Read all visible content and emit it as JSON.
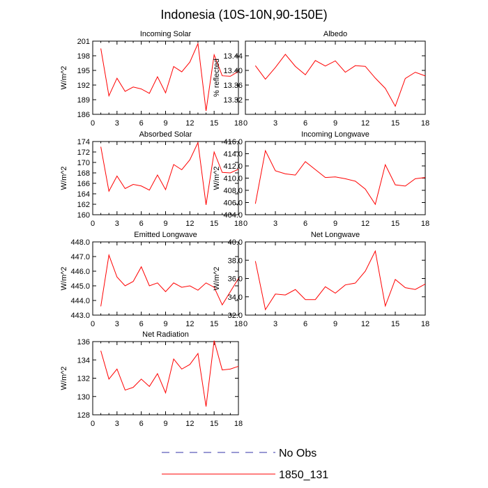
{
  "title": "Indonesia (10S-10N,90-150E)",
  "legend": [
    {
      "label": "No Obs",
      "color": "#3333aa",
      "dashed": true
    },
    {
      "label": "1850_131",
      "color": "#ff0000",
      "dashed": false
    }
  ],
  "chart_data": [
    {
      "type": "line",
      "title": "Incoming Solar",
      "xlabel": "",
      "ylabel": "W/m^2",
      "xlim": [
        0,
        18
      ],
      "xticks": [
        "0",
        "3",
        "6",
        "9",
        "12",
        "15",
        "18"
      ],
      "ylim": [
        186,
        201
      ],
      "yticks": [
        "186",
        "189",
        "192",
        "195",
        "198",
        "201"
      ],
      "series": [
        {
          "name": "1850_131",
          "color": "#ff0000",
          "x": [
            1,
            2,
            3,
            4,
            5,
            6,
            7,
            8,
            9,
            10,
            11,
            12,
            13,
            14,
            15,
            16,
            17,
            18
          ],
          "values": [
            199.5,
            189.8,
            193.4,
            190.7,
            191.6,
            191.2,
            190.3,
            193.7,
            190.4,
            195.8,
            194.7,
            196.7,
            200.5,
            186.7,
            198.2,
            193.9,
            193.8,
            194.8
          ]
        }
      ]
    },
    {
      "type": "line",
      "title": "Albedo",
      "xlabel": "",
      "ylabel": "% reflected",
      "xlim": [
        0,
        18
      ],
      "xticks": [
        "0",
        "3",
        "6",
        "9",
        "12",
        "15",
        "18"
      ],
      "ylim": [
        13.28,
        13.48
      ],
      "yticks": [
        "13.32",
        "13.36",
        "13.40",
        "13.44"
      ],
      "series": [
        {
          "name": "1850_131",
          "color": "#ff0000",
          "x": [
            1,
            2,
            3,
            4,
            5,
            6,
            7,
            8,
            9,
            10,
            11,
            12,
            13,
            14,
            15,
            16,
            17,
            18
          ],
          "values": [
            13.413,
            13.376,
            13.408,
            13.444,
            13.411,
            13.388,
            13.427,
            13.412,
            13.426,
            13.395,
            13.413,
            13.411,
            13.379,
            13.351,
            13.302,
            13.378,
            13.395,
            13.385
          ]
        }
      ]
    },
    {
      "type": "line",
      "title": "Absorbed Solar",
      "xlabel": "",
      "ylabel": "W/m^2",
      "xlim": [
        0,
        18
      ],
      "xticks": [
        "0",
        "3",
        "6",
        "9",
        "12",
        "15",
        "18"
      ],
      "ylim": [
        160,
        174
      ],
      "yticks": [
        "160",
        "162",
        "164",
        "166",
        "168",
        "170",
        "172",
        "174"
      ],
      "series": [
        {
          "name": "1850_131",
          "color": "#ff0000",
          "x": [
            1,
            2,
            3,
            4,
            5,
            6,
            7,
            8,
            9,
            10,
            11,
            12,
            13,
            14,
            15,
            16,
            17,
            18
          ],
          "values": [
            173.0,
            164.5,
            167.4,
            165.0,
            165.8,
            165.5,
            164.7,
            167.6,
            164.8,
            169.6,
            168.6,
            170.5,
            173.8,
            161.9,
            172.0,
            168.1,
            168.0,
            168.7
          ]
        }
      ]
    },
    {
      "type": "line",
      "title": "Incoming Longwave",
      "xlabel": "",
      "ylabel": "W/m^2",
      "xlim": [
        0,
        18
      ],
      "xticks": [
        "0",
        "3",
        "6",
        "9",
        "12",
        "15",
        "18"
      ],
      "ylim": [
        404,
        416
      ],
      "yticks": [
        "404.0",
        "406.0",
        "408.0",
        "410.0",
        "412.0",
        "414.0",
        "416.0"
      ],
      "series": [
        {
          "name": "1850_131",
          "color": "#ff0000",
          "x": [
            1,
            2,
            3,
            4,
            5,
            6,
            7,
            8,
            9,
            10,
            11,
            12,
            13,
            14,
            15,
            16,
            17,
            18
          ],
          "values": [
            405.8,
            414.5,
            411.2,
            410.7,
            410.5,
            412.7,
            411.4,
            410.1,
            410.2,
            409.9,
            409.5,
            408.2,
            405.7,
            412.2,
            408.9,
            408.7,
            409.9,
            410.1
          ]
        }
      ]
    },
    {
      "type": "line",
      "title": "Emitted Longwave",
      "xlabel": "",
      "ylabel": "W/m^2",
      "xlim": [
        0,
        18
      ],
      "xticks": [
        "0",
        "3",
        "6",
        "9",
        "12",
        "15",
        "18"
      ],
      "ylim": [
        443,
        448
      ],
      "yticks": [
        "443.0",
        "444.0",
        "445.0",
        "446.0",
        "447.0",
        "448.0"
      ],
      "series": [
        {
          "name": "1850_131",
          "color": "#ff0000",
          "x": [
            1,
            2,
            3,
            4,
            5,
            6,
            7,
            8,
            9,
            10,
            11,
            12,
            13,
            14,
            15,
            16,
            17,
            18
          ],
          "values": [
            443.6,
            447.1,
            445.6,
            445.0,
            445.3,
            446.3,
            445.0,
            445.2,
            444.6,
            445.2,
            444.9,
            445.0,
            444.7,
            445.2,
            444.9,
            443.7,
            444.6,
            445.5
          ]
        }
      ]
    },
    {
      "type": "line",
      "title": "Net Longwave",
      "xlabel": "",
      "ylabel": "W/m^2",
      "xlim": [
        0,
        18
      ],
      "xticks": [
        "0",
        "3",
        "6",
        "9",
        "12",
        "15",
        "18"
      ],
      "ylim": [
        32,
        40
      ],
      "yticks": [
        "32.0",
        "34.0",
        "36.0",
        "38.0",
        "40.0"
      ],
      "series": [
        {
          "name": "1850_131",
          "color": "#ff0000",
          "x": [
            1,
            2,
            3,
            4,
            5,
            6,
            7,
            8,
            9,
            10,
            11,
            12,
            13,
            14,
            15,
            16,
            17,
            18
          ],
          "values": [
            37.9,
            32.6,
            34.3,
            34.2,
            34.8,
            33.7,
            33.7,
            35.1,
            34.4,
            35.3,
            35.5,
            36.8,
            39.0,
            33.0,
            35.9,
            35.0,
            34.8,
            35.4
          ]
        }
      ]
    },
    {
      "type": "line",
      "title": "Net Radiation",
      "xlabel": "",
      "ylabel": "W/m^2",
      "xlim": [
        0,
        18
      ],
      "xticks": [
        "0",
        "3",
        "6",
        "9",
        "12",
        "15",
        "18"
      ],
      "ylim": [
        128,
        136
      ],
      "yticks": [
        "128",
        "130",
        "132",
        "134",
        "136"
      ],
      "series": [
        {
          "name": "1850_131",
          "color": "#ff0000",
          "x": [
            1,
            2,
            3,
            4,
            5,
            6,
            7,
            8,
            9,
            10,
            11,
            12,
            13,
            14,
            15,
            16,
            17,
            18
          ],
          "values": [
            135.0,
            131.9,
            133.0,
            130.7,
            131.0,
            131.9,
            131.1,
            132.5,
            130.4,
            134.1,
            133.0,
            133.5,
            134.7,
            128.9,
            136.1,
            132.9,
            133.0,
            133.3
          ]
        }
      ]
    }
  ]
}
